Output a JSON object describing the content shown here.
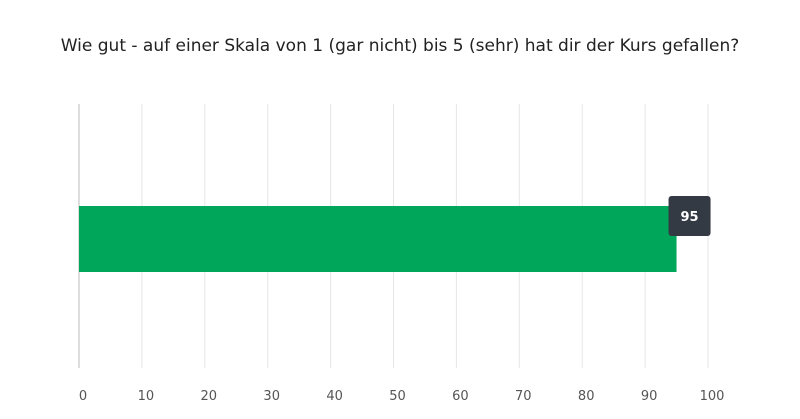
{
  "question": {
    "title": "Wie gut - auf einer Skala von 1 (gar nicht) bis 5 (sehr) hat dir der Kurs gefallen?"
  },
  "colors": {
    "bar": "#00a65a",
    "label_bg": "#333a44",
    "grid": "#e6e6e6",
    "axis": "#bbbbbb",
    "tick_text": "#555555"
  },
  "chart_data": {
    "type": "bar",
    "orientation": "horizontal",
    "title": "Wie gut - auf einer Skala von 1 (gar nicht) bis 5 (sehr) hat dir der Kurs gefallen?",
    "categories": [
      ""
    ],
    "values": [
      95
    ],
    "data_labels": [
      "95"
    ],
    "xlim": [
      0,
      100
    ],
    "x_ticks": [
      0,
      10,
      20,
      30,
      40,
      50,
      60,
      70,
      80,
      90,
      100
    ],
    "xlabel": "",
    "ylabel": "",
    "grid": "vertical",
    "legend": "none"
  }
}
